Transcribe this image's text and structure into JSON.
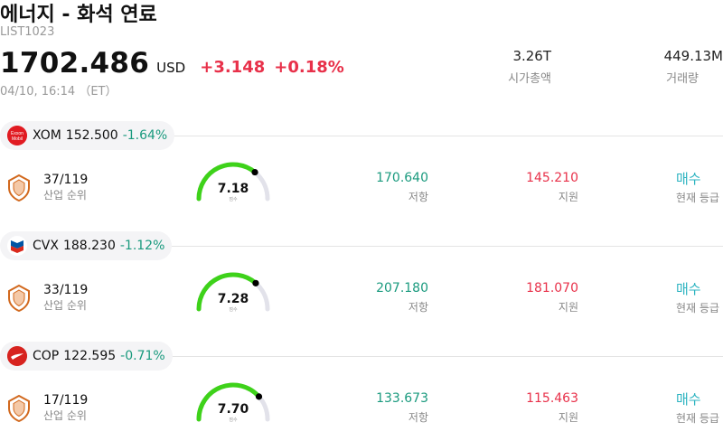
{
  "header": {
    "title": "에너지 - 화석 연료",
    "code": "LIST1023",
    "price": "1702.486",
    "currency": "USD",
    "change": "+3.148",
    "change_pct": "+0.18%",
    "datetime": "04/10, 16:14 （ET）",
    "market_cap_value": "3.26T",
    "market_cap_label": "시가총액",
    "volume_value": "449.13M",
    "volume_label": "거래량"
  },
  "stocks": [
    {
      "symbol": "XOM",
      "price": "152.500",
      "change_pct": "-1.64%",
      "logo": "exxonmobil-logo",
      "logo_text_1": "Exxon",
      "logo_text_2": "Mobil",
      "rank": "37/119",
      "rank_label": "산업 순위",
      "score": "7.18",
      "score_value": 7.18,
      "score_label": "점수",
      "resistance": "170.640",
      "resistance_label": "저항",
      "support": "145.210",
      "support_label": "지원",
      "rating": "매수",
      "rating_label": "현재 등급"
    },
    {
      "symbol": "CVX",
      "price": "188.230",
      "change_pct": "-1.12%",
      "logo": "chevron-logo",
      "rank": "33/119",
      "rank_label": "산업 순위",
      "score": "7.28",
      "score_value": 7.28,
      "score_label": "점수",
      "resistance": "207.180",
      "resistance_label": "저항",
      "support": "181.070",
      "support_label": "지원",
      "rating": "매수",
      "rating_label": "현재 등급"
    },
    {
      "symbol": "COP",
      "price": "122.595",
      "change_pct": "-0.71%",
      "logo": "conocophillips-logo",
      "rank": "17/119",
      "rank_label": "산업 순위",
      "score": "7.70",
      "score_value": 7.7,
      "score_label": "점수",
      "resistance": "133.673",
      "resistance_label": "저항",
      "support": "115.463",
      "support_label": "지원",
      "rating": "매수",
      "rating_label": "현재 등급"
    }
  ],
  "colors": {
    "up": "#e8314a",
    "down": "#1a9a7e",
    "gauge_fill": "#3ed21a",
    "gauge_track": "#e2e2ea",
    "buy": "#2bb3c0",
    "rank_icon": "#d2691e"
  }
}
